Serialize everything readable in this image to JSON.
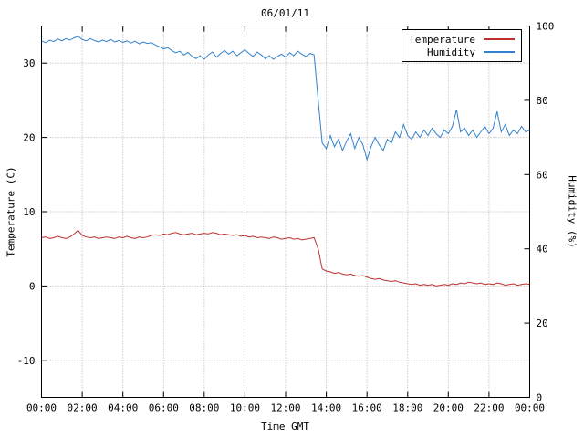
{
  "chart_data": {
    "type": "line",
    "title": "06/01/11",
    "xlabel": "Time GMT",
    "ylabel_left": "Temperature (C)",
    "ylabel_right": "Humidity (%)",
    "grid": true,
    "legend_position": "top-right",
    "x_range_hours": [
      0,
      24
    ],
    "x_start_hours": 0,
    "sample_step_hours": 0.2,
    "x_tick_hours": [
      0,
      2,
      4,
      6,
      8,
      10,
      12,
      14,
      16,
      18,
      20,
      22,
      24
    ],
    "x_tick_labels": [
      "00:00",
      "02:00",
      "04:00",
      "06:00",
      "08:00",
      "10:00",
      "12:00",
      "14:00",
      "16:00",
      "18:00",
      "20:00",
      "22:00",
      "00:00"
    ],
    "left_axis": {
      "min": -15,
      "max": 35,
      "ticks": [
        -10,
        0,
        10,
        20,
        30
      ]
    },
    "right_axis": {
      "min": 0,
      "max": 100,
      "ticks": [
        0,
        20,
        40,
        60,
        80,
        100
      ]
    },
    "series": [
      {
        "name": "Temperature",
        "axis": "left",
        "color": "#c03030",
        "values": [
          6.5,
          6.6,
          6.4,
          6.5,
          6.7,
          6.5,
          6.4,
          6.6,
          7.0,
          7.5,
          6.8,
          6.6,
          6.5,
          6.6,
          6.4,
          6.5,
          6.6,
          6.5,
          6.4,
          6.6,
          6.5,
          6.7,
          6.5,
          6.4,
          6.6,
          6.5,
          6.6,
          6.8,
          6.9,
          6.8,
          7.0,
          6.9,
          7.1,
          7.2,
          7.0,
          6.9,
          7.0,
          7.1,
          6.9,
          7.0,
          7.1,
          7.0,
          7.2,
          7.1,
          6.9,
          7.0,
          6.9,
          6.8,
          6.9,
          6.7,
          6.8,
          6.6,
          6.7,
          6.5,
          6.6,
          6.5,
          6.4,
          6.6,
          6.5,
          6.3,
          6.4,
          6.5,
          6.3,
          6.4,
          6.2,
          6.3,
          6.4,
          6.5,
          5.0,
          2.3,
          2.0,
          1.9,
          1.7,
          1.8,
          1.6,
          1.5,
          1.6,
          1.4,
          1.3,
          1.4,
          1.2,
          1.0,
          0.9,
          1.0,
          0.8,
          0.7,
          0.6,
          0.7,
          0.5,
          0.4,
          0.3,
          0.2,
          0.3,
          0.1,
          0.2,
          0.1,
          0.2,
          0.0,
          0.1,
          0.2,
          0.1,
          0.3,
          0.2,
          0.4,
          0.3,
          0.5,
          0.4,
          0.3,
          0.4,
          0.2,
          0.3,
          0.2,
          0.4,
          0.3,
          0.1,
          0.2,
          0.3,
          0.1,
          0.2,
          0.3,
          0.2
        ]
      },
      {
        "name": "Humidity",
        "axis": "right",
        "color": "#3380cc",
        "values": [
          96.0,
          95.5,
          96.2,
          95.8,
          96.5,
          96.0,
          96.6,
          96.2,
          96.8,
          97.2,
          96.4,
          96.0,
          96.6,
          96.1,
          95.7,
          96.2,
          95.8,
          96.4,
          95.7,
          96.1,
          95.6,
          96.0,
          95.4,
          95.9,
          95.2,
          95.7,
          95.3,
          95.5,
          94.9,
          94.4,
          93.8,
          94.2,
          93.4,
          92.8,
          93.2,
          92.2,
          92.9,
          91.8,
          91.2,
          92.0,
          91.0,
          92.2,
          93.0,
          91.6,
          92.6,
          93.4,
          92.4,
          93.2,
          92.0,
          92.8,
          93.6,
          92.6,
          91.8,
          93.0,
          92.2,
          91.2,
          92.0,
          91.0,
          91.8,
          92.4,
          91.6,
          92.8,
          92.0,
          93.2,
          92.4,
          91.8,
          92.6,
          92.2,
          80.0,
          68.5,
          67.0,
          70.5,
          67.5,
          69.5,
          66.5,
          69.0,
          71.0,
          67.0,
          70.0,
          68.0,
          64.0,
          67.5,
          70.0,
          68.0,
          66.5,
          69.5,
          68.5,
          71.5,
          70.0,
          73.5,
          70.5,
          69.5,
          71.5,
          70.0,
          72.0,
          70.5,
          72.5,
          71.0,
          70.0,
          72.0,
          71.0,
          73.0,
          77.5,
          71.5,
          72.5,
          70.5,
          72.0,
          70.0,
          71.5,
          73.0,
          71.0,
          72.5,
          77.0,
          71.5,
          73.5,
          70.5,
          72.0,
          71.0,
          73.0,
          71.5,
          72.0
        ]
      }
    ]
  }
}
